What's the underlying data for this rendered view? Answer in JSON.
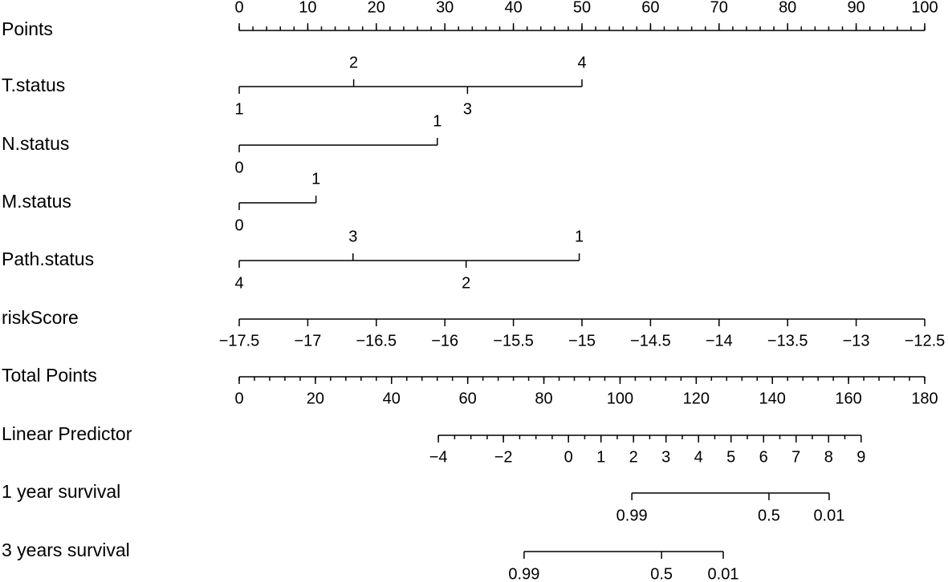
{
  "chart_data": {
    "type": "nomogram",
    "rows": [
      {
        "label": "Points",
        "kind": "axis",
        "side": "above",
        "lim": [
          0,
          100
        ],
        "ticks": [
          0,
          10,
          20,
          30,
          40,
          50,
          60,
          70,
          80,
          90,
          100
        ],
        "minor_step": 2,
        "ref_row": 0,
        "span": [
          0,
          100
        ]
      },
      {
        "label": "T.status",
        "kind": "levels",
        "ref_row": 0,
        "levels": [
          {
            "label": "1",
            "at": 0,
            "side": "below"
          },
          {
            "label": "2",
            "at": 16.7,
            "side": "above"
          },
          {
            "label": "3",
            "at": 33.3,
            "side": "below"
          },
          {
            "label": "4",
            "at": 50,
            "side": "above"
          }
        ]
      },
      {
        "label": "N.status",
        "kind": "levels",
        "ref_row": 0,
        "levels": [
          {
            "label": "0",
            "at": 0,
            "side": "below"
          },
          {
            "label": "1",
            "at": 28.9,
            "side": "above"
          }
        ]
      },
      {
        "label": "M.status",
        "kind": "levels",
        "ref_row": 0,
        "levels": [
          {
            "label": "0",
            "at": 0,
            "side": "below"
          },
          {
            "label": "1",
            "at": 11.2,
            "side": "above"
          }
        ]
      },
      {
        "label": "Path.status",
        "kind": "levels",
        "ref_row": 0,
        "levels": [
          {
            "label": "4",
            "at": 0,
            "side": "below"
          },
          {
            "label": "3",
            "at": 16.6,
            "side": "above"
          },
          {
            "label": "2",
            "at": 33.1,
            "side": "below"
          },
          {
            "label": "1",
            "at": 49.6,
            "side": "above"
          }
        ]
      },
      {
        "label": "riskScore",
        "kind": "axis",
        "side": "below",
        "lim": [
          -17.5,
          -12.5
        ],
        "ticks": [
          {
            "value": -17.5,
            "label": "−17.5"
          },
          {
            "value": -17,
            "label": "−17"
          },
          {
            "value": -16.5,
            "label": "−16.5"
          },
          {
            "value": -16,
            "label": "−16"
          },
          {
            "value": -15.5,
            "label": "−15.5"
          },
          {
            "value": -15,
            "label": "−15"
          },
          {
            "value": -14.5,
            "label": "−14.5"
          },
          {
            "value": -14,
            "label": "−14"
          },
          {
            "value": -13.5,
            "label": "−13.5"
          },
          {
            "value": -13,
            "label": "−13"
          },
          {
            "value": -12.5,
            "label": "−12.5"
          }
        ],
        "ref_row": 0,
        "span": [
          0,
          100
        ]
      },
      {
        "label": "Total Points",
        "kind": "axis",
        "side": "below",
        "lim": [
          0,
          180
        ],
        "ticks": [
          0,
          20,
          40,
          60,
          80,
          100,
          120,
          140,
          160,
          180
        ],
        "minor_step": 4,
        "ref_row": 6,
        "span": [
          0,
          180
        ]
      },
      {
        "label": "Linear Predictor",
        "kind": "axis",
        "side": "below",
        "lim": [
          -4,
          9
        ],
        "ticks": [
          {
            "value": -4,
            "label": "−4"
          },
          {
            "value": -2,
            "label": "−2"
          },
          0,
          1,
          2,
          3,
          4,
          5,
          6,
          7,
          8,
          9
        ],
        "minor_step": 0.5,
        "ref_row": 6,
        "span": [
          52.3,
          163.3
        ]
      },
      {
        "label": "1 year survival",
        "kind": "levels",
        "ref_row": 6,
        "levels": [
          {
            "label": "0.99",
            "at": 103.1,
            "side": "below"
          },
          {
            "label": "0.5",
            "at": 139.1,
            "side": "below"
          },
          {
            "label": "0.01",
            "at": 154.9,
            "side": "below"
          }
        ]
      },
      {
        "label": "3 years survival",
        "kind": "levels",
        "ref_row": 6,
        "levels": [
          {
            "label": "0.99",
            "at": 74.8,
            "side": "below"
          },
          {
            "label": "0.5",
            "at": 110.9,
            "side": "below"
          },
          {
            "label": "0.01",
            "at": 127.1,
            "side": "below"
          }
        ]
      }
    ]
  }
}
